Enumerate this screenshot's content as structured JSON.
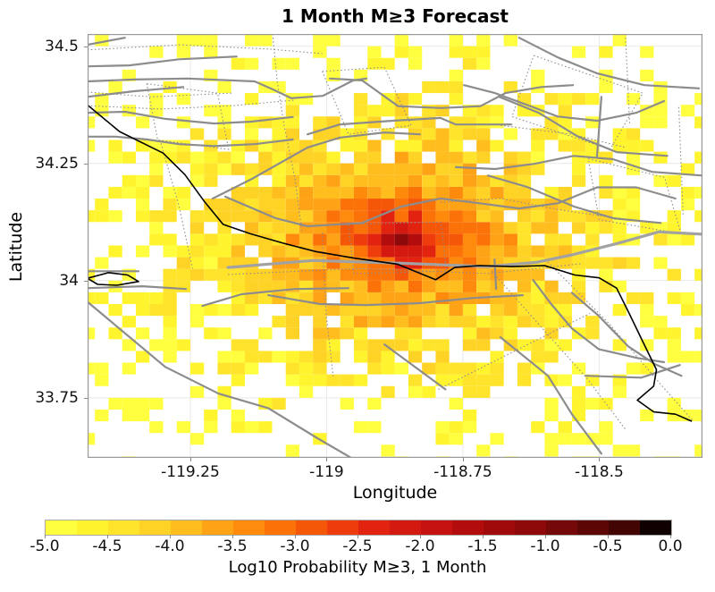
{
  "title": "1 Month M≥3 Forecast",
  "chart_data": {
    "type": "heatmap",
    "title": "1 Month M≥3 Forecast",
    "xlabel": "Longitude",
    "ylabel": "Latitude",
    "xlim": [
      -119.4385,
      -118.3105
    ],
    "ylim": [
      33.622,
      34.526
    ],
    "grid": true,
    "grid_color": "#e9e9e9",
    "frame_color": "#999999",
    "xticks": [
      -119.25,
      -119.0,
      -118.75,
      -118.5
    ],
    "xtick_labels": [
      "-119.25",
      "-119",
      "-118.75",
      "-118.5"
    ],
    "yticks": [
      34.5,
      34.25,
      34.0,
      33.75
    ],
    "ytick_labels": [
      "34.5",
      "34.25",
      "34",
      "33.75"
    ],
    "cell_size_deg": 0.025,
    "grid_origin": [
      -119.45,
      33.6
    ],
    "grid_cols": 46,
    "grid_rows": 38,
    "hotspot": {
      "lon": -118.8625,
      "lat": 34.0875,
      "peak_log10_prob": -1.1,
      "formula_const": -5.51,
      "formula_log10_coef": 2.41,
      "anisotropy_ew": 1.0,
      "anisotropy_ns": 0.72,
      "noise_log10": 0.8,
      "dropout_start": -3.9,
      "dropout_floor": -5.45,
      "display_floor": -5.0
    },
    "colormap_colors": [
      "#ffff3f",
      "#fff42e",
      "#ffe42b",
      "#ffd226",
      "#ffbd1e",
      "#ffa316",
      "#ff8a0c",
      "#fb7208",
      "#f55708",
      "#ef3c0c",
      "#e22310",
      "#d41a10",
      "#c61210",
      "#b20c0c",
      "#a00a0a",
      "#8e0a0a",
      "#750808",
      "#5c0606",
      "#430404",
      "#100101"
    ],
    "colorbar": {
      "label": "Log10 Probability M≥3, 1 Month",
      "range": [
        -5.0,
        0.0
      ],
      "segments": 20,
      "ticks": [
        -5.0,
        -4.5,
        -4.0,
        -3.5,
        -3.0,
        -2.5,
        -2.0,
        -1.5,
        -1.0,
        -0.5,
        0.0
      ],
      "tick_labels": [
        "-5.0",
        "-4.5",
        "-4.0",
        "-3.5",
        "-3.0",
        "-2.5",
        "-2.0",
        "-1.5",
        "-1.0",
        "-0.5",
        "0.0"
      ]
    },
    "map_layers": {
      "coastline_color": "#000000",
      "fault_color": "#8c8c8c",
      "major_fault_color": "#a2a2a2",
      "coastline": [
        [
          [
            -119.439,
            34.375
          ],
          [
            -119.38,
            34.318
          ],
          [
            -119.3,
            34.272
          ],
          [
            -119.26,
            34.226
          ],
          [
            -119.225,
            34.17
          ],
          [
            -119.19,
            34.12
          ],
          [
            -119.14,
            34.1
          ],
          [
            -119.08,
            34.08
          ],
          [
            -119.02,
            34.062
          ],
          [
            -118.95,
            34.048
          ],
          [
            -118.87,
            34.035
          ],
          [
            -118.8,
            34.002
          ],
          [
            -118.765,
            34.028
          ],
          [
            -118.72,
            34.032
          ],
          [
            -118.66,
            34.03
          ],
          [
            -118.6,
            34.032
          ],
          [
            -118.545,
            34.012
          ],
          [
            -118.5,
            34.006
          ],
          [
            -118.468,
            33.984
          ],
          [
            -118.445,
            33.93
          ],
          [
            -118.42,
            33.87
          ],
          [
            -118.395,
            33.81
          ],
          [
            -118.4,
            33.775
          ],
          [
            -118.43,
            33.745
          ],
          [
            -118.4,
            33.72
          ],
          [
            -118.36,
            33.715
          ],
          [
            -118.33,
            33.7
          ]
        ],
        [
          [
            -119.439,
            34.005
          ],
          [
            -119.4,
            34.017
          ],
          [
            -119.365,
            34.012
          ],
          [
            -119.345,
            33.998
          ],
          [
            -119.385,
            33.99
          ],
          [
            -119.42,
            33.992
          ],
          [
            -119.439,
            34.005
          ]
        ]
      ],
      "faults_major": [
        {
          "w": 3.2,
          "pts": [
            [
              -119.181,
              34.028
            ],
            [
              -119.025,
              34.043
            ],
            [
              -118.861,
              34.037
            ],
            [
              -118.705,
              34.03
            ],
            [
              -118.616,
              34.039
            ],
            [
              -118.55,
              34.055
            ],
            [
              -118.468,
              34.079
            ],
            [
              -118.391,
              34.104
            ],
            [
              -118.311,
              34.099
            ]
          ]
        }
      ],
      "faults_solid": [
        [
          [
            -119.439,
            34.503
          ],
          [
            -119.37,
            34.518
          ]
        ],
        [
          [
            -119.439,
            34.457
          ],
          [
            -119.362,
            34.459
          ],
          [
            -119.271,
            34.472
          ],
          [
            -119.165,
            34.478
          ]
        ],
        [
          [
            -119.439,
            34.425
          ],
          [
            -119.353,
            34.429
          ],
          [
            -119.255,
            34.431
          ],
          [
            -119.132,
            34.425
          ],
          [
            -119.099,
            34.408
          ],
          [
            -119.065,
            34.389
          ],
          [
            -119.007,
            34.394
          ],
          [
            -118.951,
            34.427
          ],
          [
            -118.927,
            34.431
          ]
        ],
        [
          [
            -119.439,
            34.392
          ],
          [
            -119.353,
            34.404
          ],
          [
            -119.263,
            34.413
          ]
        ],
        [
          [
            -119.439,
            34.358
          ],
          [
            -119.37,
            34.36
          ],
          [
            -119.296,
            34.345
          ],
          [
            -119.206,
            34.335
          ],
          [
            -119.14,
            34.339
          ],
          [
            -119.062,
            34.349
          ]
        ],
        [
          [
            -119.439,
            34.307
          ],
          [
            -119.387,
            34.307
          ],
          [
            -119.329,
            34.301
          ],
          [
            -119.271,
            34.291
          ],
          [
            -119.206,
            34.287
          ],
          [
            -119.132,
            34.291
          ],
          [
            -119.062,
            34.301
          ]
        ],
        [
          [
            -119.209,
            34.175
          ],
          [
            -119.137,
            34.217
          ],
          [
            -119.035,
            34.284
          ],
          [
            -118.976,
            34.305
          ],
          [
            -118.894,
            34.316
          ],
          [
            -118.829,
            34.312
          ]
        ],
        [
          [
            -119.035,
            34.312
          ],
          [
            -118.976,
            34.333
          ],
          [
            -118.878,
            34.341
          ],
          [
            -118.791,
            34.347
          ],
          [
            -118.763,
            34.333
          ],
          [
            -118.661,
            34.333
          ]
        ],
        [
          [
            -119.186,
            34.179
          ],
          [
            -119.093,
            34.133
          ],
          [
            -119.035,
            34.116
          ],
          [
            -118.935,
            34.123
          ],
          [
            -118.863,
            34.158
          ],
          [
            -118.791,
            34.175
          ],
          [
            -118.719,
            34.165
          ],
          [
            -118.647,
            34.154
          ],
          [
            -118.576,
            34.165
          ],
          [
            -118.504,
            34.199
          ],
          [
            -118.432,
            34.199
          ],
          [
            -118.36,
            34.175
          ]
        ],
        [
          [
            -118.994,
            34.431
          ],
          [
            -118.935,
            34.427
          ],
          [
            -118.869,
            34.372
          ],
          [
            -118.79,
            34.368
          ],
          [
            -118.718,
            34.372
          ],
          [
            -118.672,
            34.4
          ],
          [
            -118.606,
            34.413
          ],
          [
            -118.548,
            34.417
          ]
        ],
        [
          [
            -118.748,
            34.417
          ],
          [
            -118.691,
            34.4
          ],
          [
            -118.633,
            34.375
          ],
          [
            -118.576,
            34.35
          ],
          [
            -118.504,
            34.341
          ],
          [
            -118.432,
            34.358
          ],
          [
            -118.381,
            34.383
          ]
        ],
        [
          [
            -118.683,
            34.392
          ],
          [
            -118.611,
            34.358
          ],
          [
            -118.54,
            34.308
          ],
          [
            -118.468,
            34.274
          ],
          [
            -118.375,
            34.266
          ]
        ],
        [
          [
            -118.763,
            34.242
          ],
          [
            -118.691,
            34.238
          ],
          [
            -118.619,
            34.249
          ],
          [
            -118.547,
            34.266
          ],
          [
            -118.475,
            34.259
          ],
          [
            -118.403,
            34.232
          ],
          [
            -118.311,
            34.224
          ]
        ],
        [
          [
            -118.704,
            34.224
          ],
          [
            -118.633,
            34.2
          ],
          [
            -118.546,
            34.158
          ],
          [
            -118.474,
            34.133
          ],
          [
            -118.387,
            34.123
          ]
        ],
        [
          [
            -118.647,
            34.518
          ],
          [
            -118.576,
            34.476
          ],
          [
            -118.504,
            34.442
          ],
          [
            -118.417,
            34.417
          ],
          [
            -118.317,
            34.41
          ]
        ],
        [
          [
            -118.496,
            34.392
          ],
          [
            -118.504,
            34.265
          ]
        ],
        [
          [
            -119.228,
            33.946
          ],
          [
            -119.156,
            33.971
          ],
          [
            -119.058,
            33.982
          ],
          [
            -118.96,
            33.984
          ]
        ],
        [
          [
            -119.107,
            33.969
          ],
          [
            -119.012,
            33.95
          ],
          [
            -118.927,
            33.948
          ],
          [
            -118.829,
            33.952
          ],
          [
            -118.73,
            33.963
          ],
          [
            -118.64,
            33.969
          ]
        ],
        [
          [
            -119.439,
            33.955
          ],
          [
            -119.296,
            33.816
          ],
          [
            -119.198,
            33.759
          ],
          [
            -119.107,
            33.728
          ],
          [
            -119.017,
            33.664
          ],
          [
            -118.955,
            33.622
          ]
        ],
        [
          [
            -119.439,
            34.02
          ],
          [
            -119.345,
            34.02
          ]
        ],
        [
          [
            -119.439,
            33.984
          ],
          [
            -119.337,
            33.988
          ],
          [
            -119.258,
            33.982
          ]
        ],
        [
          [
            -118.621,
            34.001
          ],
          [
            -118.588,
            33.95
          ],
          [
            -118.55,
            33.898
          ],
          [
            -118.501,
            33.854
          ],
          [
            -118.43,
            33.835
          ],
          [
            -118.381,
            33.826
          ]
        ],
        [
          [
            -118.55,
            33.974
          ],
          [
            -118.501,
            33.925
          ],
          [
            -118.447,
            33.86
          ],
          [
            -118.398,
            33.822
          ],
          [
            -118.349,
            33.797
          ]
        ],
        [
          [
            -118.681,
            33.879
          ],
          [
            -118.594,
            33.797
          ],
          [
            -118.55,
            33.715
          ],
          [
            -118.496,
            33.631
          ]
        ],
        [
          [
            -118.525,
            33.797
          ],
          [
            -118.423,
            33.793
          ],
          [
            -118.352,
            33.82
          ]
        ],
        [
          [
            -118.692,
            34.045
          ],
          [
            -118.689,
            33.982
          ]
        ],
        [
          [
            -118.894,
            33.864
          ],
          [
            -118.782,
            33.768
          ]
        ]
      ],
      "faults_dotted": [
        [
          [
            -119.439,
            34.492
          ],
          [
            -119.271,
            34.503
          ],
          [
            -119.107,
            34.494
          ],
          [
            -119.008,
            34.484
          ]
        ],
        [
          [
            -119.439,
            34.402
          ],
          [
            -119.321,
            34.392
          ],
          [
            -119.173,
            34.4
          ]
        ],
        [
          [
            -119.439,
            34.373
          ],
          [
            -119.304,
            34.366
          ],
          [
            -119.173,
            34.373
          ],
          [
            -119.058,
            34.385
          ]
        ],
        [
          [
            -119.099,
            34.526
          ],
          [
            -119.091,
            34.427
          ],
          [
            -119.078,
            34.331
          ],
          [
            -119.058,
            34.217
          ],
          [
            -119.045,
            34.102
          ]
        ],
        [
          [
            -119.304,
            34.293
          ],
          [
            -119.271,
            34.16
          ],
          [
            -119.246,
            34.026
          ]
        ],
        [
          [
            -119.33,
            34.42
          ],
          [
            -119.2,
            34.4
          ],
          [
            -119.18,
            34.28
          ],
          [
            -119.31,
            34.3
          ],
          [
            -119.33,
            34.42
          ]
        ],
        [
          [
            -118.96,
            34.12
          ],
          [
            -118.79,
            34.125
          ],
          [
            -118.78,
            34.02
          ],
          [
            -118.95,
            34.015
          ],
          [
            -118.96,
            34.12
          ]
        ],
        [
          [
            -118.62,
            34.48
          ],
          [
            -118.42,
            34.4
          ],
          [
            -118.48,
            34.28
          ],
          [
            -118.66,
            34.35
          ],
          [
            -118.62,
            34.48
          ]
        ],
        [
          [
            -118.52,
            34.26
          ],
          [
            -118.38,
            34.22
          ],
          [
            -118.35,
            34.1
          ],
          [
            -118.5,
            34.13
          ],
          [
            -118.52,
            34.26
          ]
        ],
        [
          [
            -118.697,
            34.02
          ],
          [
            -118.604,
            33.898
          ],
          [
            -118.522,
            33.791
          ],
          [
            -118.452,
            33.683
          ]
        ],
        [
          [
            -118.599,
            34.045
          ],
          [
            -118.484,
            33.911
          ],
          [
            -118.386,
            33.777
          ],
          [
            -118.328,
            33.701
          ]
        ],
        [
          [
            -118.795,
            33.768
          ],
          [
            -118.648,
            33.854
          ],
          [
            -118.517,
            33.93
          ]
        ],
        [
          [
            -118.791,
            34.167
          ],
          [
            -118.681,
            34.175
          ],
          [
            -118.566,
            34.15
          ],
          [
            -118.452,
            34.131
          ]
        ],
        [
          [
            -119.181,
            34.013
          ],
          [
            -118.943,
            34.026
          ],
          [
            -118.705,
            34.015
          ],
          [
            -118.533,
            34.036
          ]
        ],
        [
          [
            -118.452,
            34.526
          ],
          [
            -118.444,
            34.331
          ]
        ],
        [
          [
            -118.354,
            34.37
          ],
          [
            -118.346,
            34.141
          ]
        ],
        [
          [
            -119.008,
            34.102
          ],
          [
            -119.001,
            33.93
          ],
          [
            -118.988,
            33.796
          ]
        ],
        [
          [
            -119.008,
            34.446
          ],
          [
            -118.894,
            34.455
          ],
          [
            -118.845,
            34.331
          ],
          [
            -118.96,
            34.312
          ],
          [
            -119.008,
            34.446
          ]
        ],
        [
          [
            -118.681,
            34.331
          ],
          [
            -118.55,
            34.312
          ],
          [
            -118.452,
            34.284
          ]
        ]
      ]
    }
  }
}
